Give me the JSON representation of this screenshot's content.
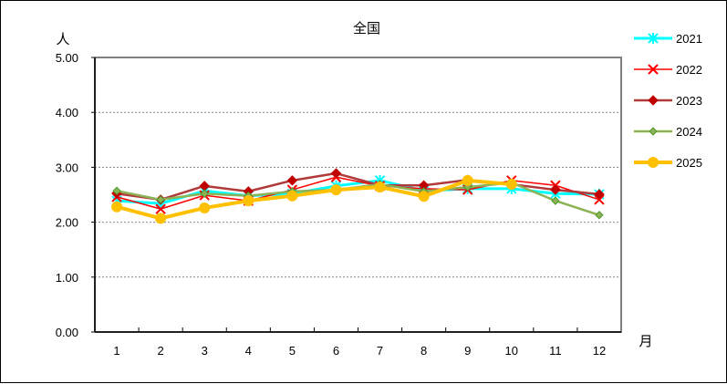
{
  "chart_data": {
    "type": "line",
    "title": "全国",
    "ylabel": "人",
    "xlabel": "月",
    "ylim": [
      0,
      5
    ],
    "yticks": [
      "0.00",
      "1.00",
      "2.00",
      "3.00",
      "4.00",
      "5.00"
    ],
    "categories": [
      "1",
      "2",
      "3",
      "4",
      "5",
      "6",
      "7",
      "8",
      "9",
      "10",
      "11",
      "12"
    ],
    "grid": true,
    "legend_position": "right",
    "series": [
      {
        "name": "2021",
        "color": "#00FFFF",
        "marker": "asterisk",
        "width": 3,
        "values": [
          2.39,
          2.34,
          2.57,
          2.48,
          2.52,
          2.66,
          2.76,
          2.57,
          2.61,
          2.61,
          2.52,
          2.51
        ]
      },
      {
        "name": "2022",
        "color": "#FF0000",
        "marker": "x",
        "width": 1.5,
        "values": [
          2.46,
          2.24,
          2.49,
          2.39,
          2.59,
          2.82,
          2.66,
          2.61,
          2.59,
          2.76,
          2.67,
          2.41
        ]
      },
      {
        "name": "2023",
        "color": "#B03A3A",
        "marker": "diamond",
        "markerColor": "#C00000",
        "width": 2.5,
        "values": [
          2.52,
          2.41,
          2.66,
          2.56,
          2.76,
          2.89,
          2.67,
          2.67,
          2.77,
          2.69,
          2.59,
          2.51
        ]
      },
      {
        "name": "2024",
        "color": "#8DB255",
        "marker": "diamond-small",
        "markerColor": "#4E9A2E",
        "width": 2.5,
        "values": [
          2.57,
          2.41,
          2.52,
          2.48,
          2.56,
          2.59,
          2.69,
          2.56,
          2.64,
          2.72,
          2.39,
          2.13
        ]
      },
      {
        "name": "2025",
        "color": "#FFC000",
        "marker": "circle",
        "width": 4,
        "values": [
          2.28,
          2.07,
          2.26,
          2.39,
          2.48,
          2.59,
          2.64,
          2.47,
          2.76,
          2.69,
          null,
          null
        ]
      }
    ]
  }
}
